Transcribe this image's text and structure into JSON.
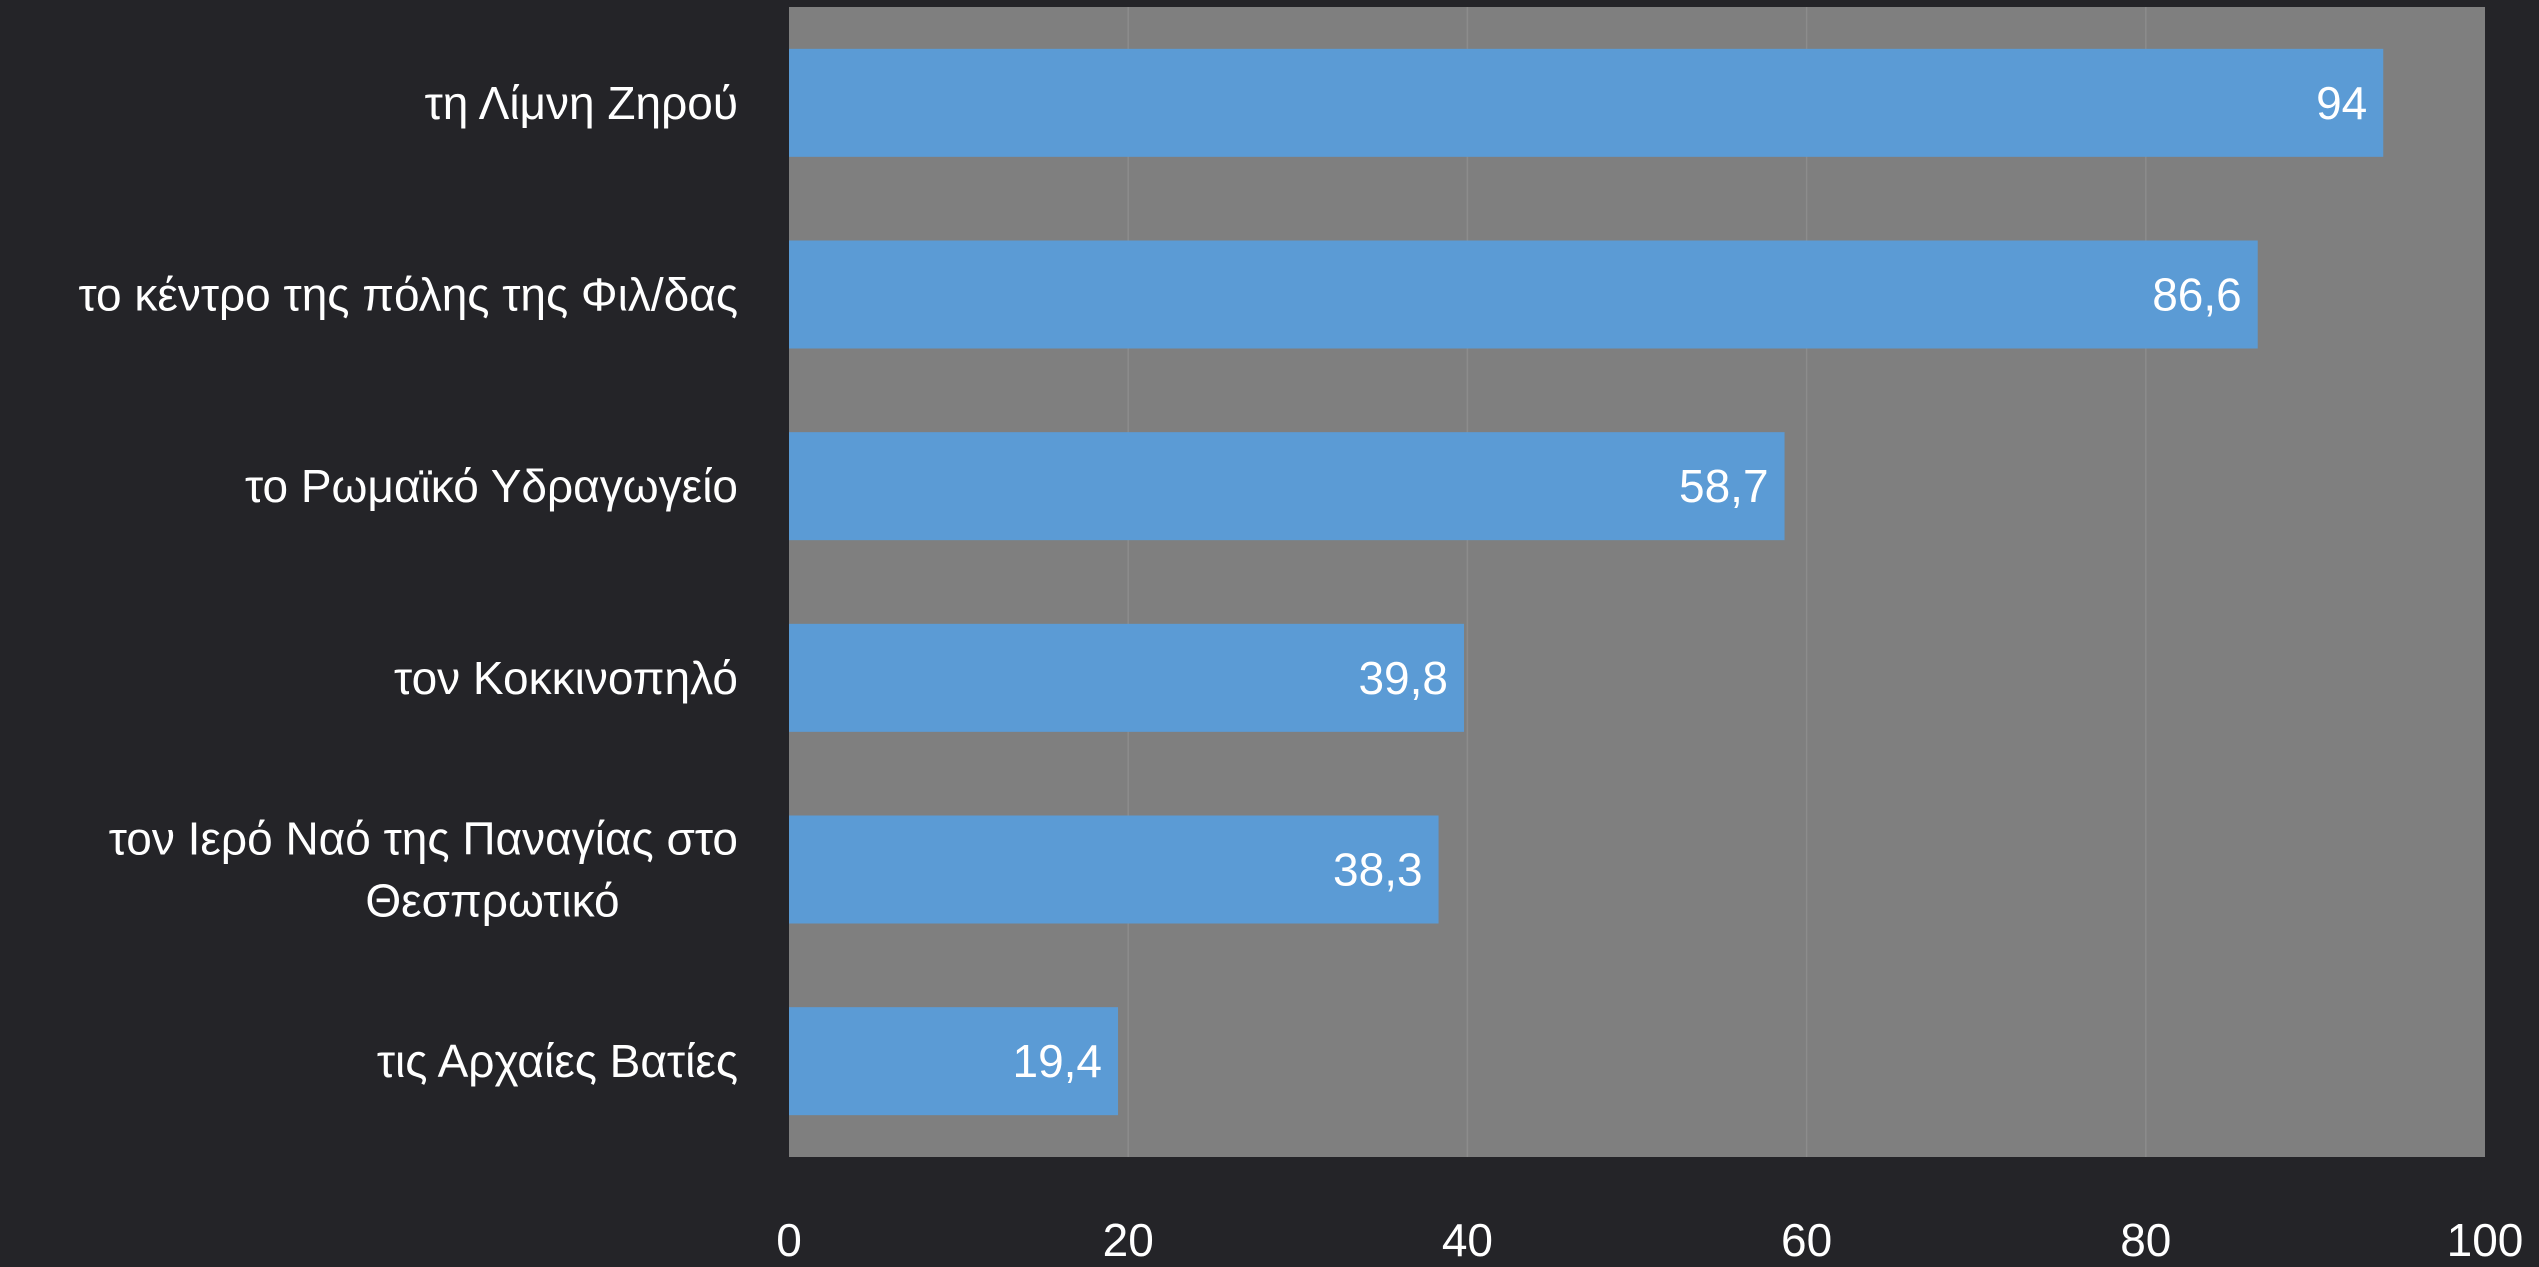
{
  "chart_data": {
    "type": "bar",
    "orientation": "horizontal",
    "categories": [
      "τη Λίμνη Ζηρού",
      "το κέντρο της πόλης της Φιλ/δας",
      "το Ρωμαϊκό Υδραγωγείο",
      "τον Κοκκινοπηλό",
      "τον Ιερό Ναό της Παναγίας στο Θεσπρωτικό",
      "τις Αρχαίες Βατίες"
    ],
    "category_lines": [
      [
        "τη Λίμνη Ζηρού"
      ],
      [
        "το κέντρο της πόλης της Φιλ/δας"
      ],
      [
        "το Ρωμαϊκό Υδραγωγείο"
      ],
      [
        "τον Κοκκινοπηλό"
      ],
      [
        "τον Ιερό Ναό της Παναγίας στο",
        "Θεσπρωτικό"
      ],
      [
        "τις Αρχαίες Βατίες"
      ]
    ],
    "values": [
      94,
      86.6,
      58.7,
      39.8,
      38.3,
      19.4
    ],
    "data_labels": [
      "94",
      "86,6",
      "58,7",
      "39,8",
      "38,3",
      "19,4"
    ],
    "xlim": [
      0,
      100
    ],
    "x_ticks": [
      0,
      20,
      40,
      60,
      80,
      100
    ],
    "x_tick_labels": [
      "0",
      "20",
      "40",
      "60",
      "80",
      "100"
    ],
    "grid": true,
    "legend": "none",
    "colors": {
      "background": "#242428",
      "plot_area": "#7f7f7f",
      "bar": "#5b9bd5",
      "text": "#ffffff",
      "gridline": "#8c8c8c"
    }
  }
}
